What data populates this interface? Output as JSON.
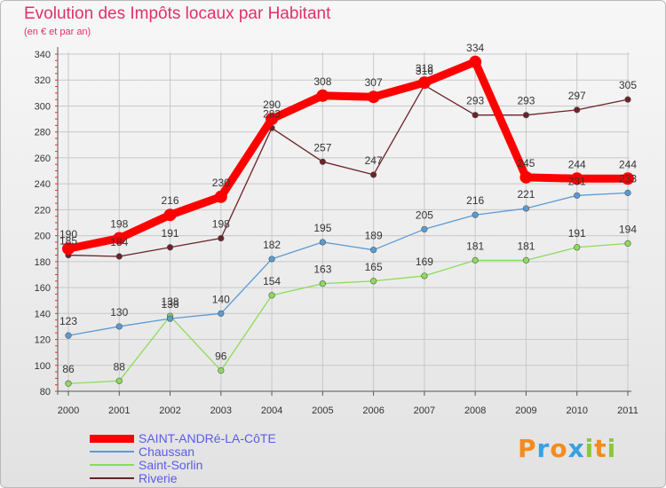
{
  "title": "Evolution des Impôts locaux par Habitant",
  "subtitle": "(en € et par an)",
  "logo": {
    "letters": [
      "P",
      "r",
      "o",
      "x",
      "i",
      "t",
      "i"
    ],
    "colors": [
      "#f28c1e",
      "#3aa0e0",
      "#f28c1e",
      "#3aa0e0",
      "#8cc63f",
      "#f28c1e",
      "#8cc63f"
    ]
  },
  "chart_data": {
    "type": "line",
    "categories": [
      "2000",
      "2001",
      "2002",
      "2003",
      "2004",
      "2005",
      "2006",
      "2007",
      "2008",
      "2009",
      "2010",
      "2011"
    ],
    "ylim": [
      80,
      340
    ],
    "yticks": [
      "80",
      "100",
      "120",
      "140",
      "160",
      "180",
      "200",
      "220",
      "240",
      "260",
      "280",
      "300",
      "320",
      "340"
    ],
    "grid": true,
    "series": [
      {
        "name": "SAINT-ANDRé-LA-CôTE",
        "color": "#ff0000",
        "values": [
          190,
          198,
          216,
          230,
          290,
          308,
          307,
          318,
          334,
          245,
          244,
          244
        ]
      },
      {
        "name": "Chaussan",
        "color": "#5b9bd5",
        "values": [
          123,
          130,
          136,
          140,
          182,
          195,
          189,
          205,
          216,
          221,
          231,
          233
        ]
      },
      {
        "name": "Saint-Sorlin",
        "color": "#8cdc5a",
        "values": [
          86,
          88,
          138,
          96,
          154,
          163,
          165,
          169,
          181,
          181,
          191,
          194
        ]
      },
      {
        "name": "Riverie",
        "color": "#6b2228",
        "values": [
          185,
          184,
          191,
          198,
          283,
          257,
          247,
          316,
          293,
          293,
          297,
          305
        ]
      }
    ]
  }
}
